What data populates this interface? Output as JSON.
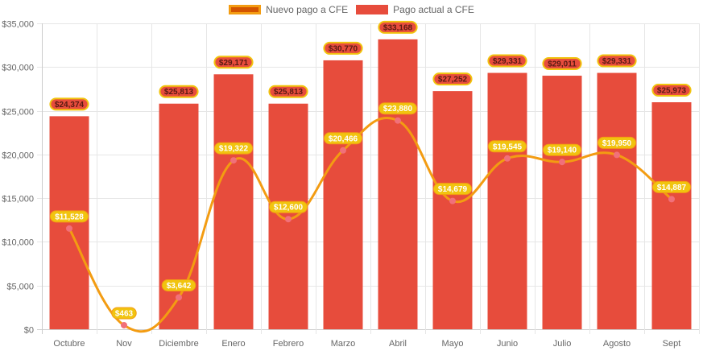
{
  "chart_data": {
    "type": "bar+line",
    "title": "",
    "xlabel": "",
    "ylabel": "",
    "ylim": [
      0,
      35000
    ],
    "yticks": [
      0,
      5000,
      10000,
      15000,
      20000,
      25000,
      30000,
      35000
    ],
    "ytick_labels": [
      "$0",
      "$5,000",
      "$10,000",
      "$15,000",
      "$20,000",
      "$25,000",
      "$30,000",
      "$35,000"
    ],
    "grid": true,
    "legend_position": "top-center",
    "categories": [
      "Octubre",
      "Nov",
      "Diciembre",
      "Enero",
      "Febrero",
      "Marzo",
      "Abril",
      "Mayo",
      "Junio",
      "Julio",
      "Agosto",
      "Sept"
    ],
    "series": [
      {
        "name": "Nuevo pago a CFE",
        "type": "line",
        "color": "#f39c12",
        "fill": "#d35400",
        "point_color": "#f1707a",
        "label_bg": "#f1c40f",
        "values": [
          11528,
          463,
          3642,
          19322,
          12600,
          20466,
          23880,
          14679,
          19545,
          19140,
          19950,
          14887
        ],
        "labels": [
          "$11,528",
          "$463",
          "$3,642",
          "$19,322",
          "$12,600",
          "$20,466",
          "$23,880",
          "$14,679",
          "$19,545",
          "$19,140",
          "$19,950",
          "$14,887"
        ]
      },
      {
        "name": "Pago actual a CFE",
        "type": "bar",
        "color": "#e74c3c",
        "label_border": "#f1c40f",
        "values": [
          24374,
          0,
          25813,
          29171,
          25813,
          30770,
          33168,
          27252,
          29331,
          29011,
          29331,
          25973
        ],
        "labels": [
          "$24,374",
          "",
          "$25,813",
          "$29,171",
          "$25,813",
          "$30,770",
          "$33,168",
          "$27,252",
          "$29,331",
          "$29,011",
          "$29,331",
          "$25,973"
        ]
      }
    ]
  }
}
